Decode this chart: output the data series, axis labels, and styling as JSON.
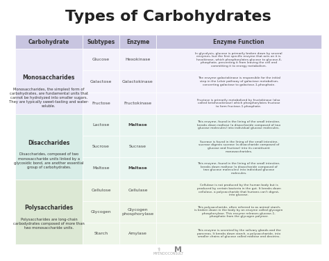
{
  "title": "Types of Carbohydrates",
  "title_fontsize": 16,
  "title_fontweight": "bold",
  "bg_color": "#ffffff",
  "header_bg": "#c8c5e0",
  "mono_bg": "#e8e6f0",
  "di_bg": "#daeee8",
  "poly_bg": "#e8f0e4",
  "subtype_bg_light": "#f0eefc",
  "subtype_bg_di": "#e4f4ef",
  "subtype_bg_poly": "#eef4e8",
  "headers": [
    "Carbohydrate",
    "Subtypes",
    "Enzyme",
    "Enzyme Function"
  ],
  "groups": [
    {
      "name": "Monosaccharides",
      "desc": "Monosaccharides, the simplest form of\ncarbohydrates, are fundamental units that\ncannot be hydrolyzed into smaller sugars.\nThey are typically sweet-tasting and water-\nsoluble.",
      "bg": "#ebe9f8",
      "row_bg": "#f4f2fc",
      "subtypes": [
        "Glucose",
        "Galactose",
        "Fructose"
      ],
      "enzymes": [
        "Hexokinase",
        "Galactokinase",
        "Fructokinase"
      ],
      "enzyme_bold": [
        false,
        false,
        false
      ],
      "functions": [
        "In glycolysis, glucose is primarily broken down by several\nenzymes, but the first specific enzyme that acts on it is\nhexokinase, which phosphorylates glucose to glucose-6-\nphosphate, preventing it from leaving the cell and\ncommitting it to energy metabolism.",
        "The enzyme galactokinase is responsible for the initial\nstep in the Leloir pathway of galactose metabolism,\nconverting galactose to galactose-1-phosphate.",
        "Fructose is primarily metabolized by fructokinase (also\ncalled ketohexokinase) which phosphorylates fructose\nto form fructose-1-phosphate."
      ]
    },
    {
      "name": "Disaccharides",
      "desc": "Disaccharides, composed of two\nmonosaccharide units linked by a\nglycosidic bond, are another essential\ngroup of carbohydrates.",
      "bg": "#d8ede7",
      "row_bg": "#e8f5f0",
      "subtypes": [
        "Lactose",
        "Sucrose",
        "Maltose"
      ],
      "enzymes": [
        "Maltase",
        "Sucrase",
        "Maltase"
      ],
      "enzyme_bold": [
        true,
        false,
        true
      ],
      "functions": [
        "This enzyme, found in the lining of the small intestine,\nbreaks down maltose (a disaccharide composed of two\nglucose molecules) into individual glucose molecules.",
        "Sucrase is found in the lining of the small intestine,\nsucrase digests sucrose (a disaccharide composed of\nglucose and fructose) into its constituent\nmonosaccharides.",
        "This enzyme, found in the lining of the small intestine,\nbreaks down maltose (a disaccharide composed of\ntwo glucose molecules) into individual glucose\nmolecules."
      ]
    },
    {
      "name": "Polysaccharides",
      "desc": "Polysaccharides are long-chain\ncarbodydrates composed of more than\ntwo monosaccharide units.",
      "bg": "#dce8d4",
      "row_bg": "#edf5e8",
      "subtypes": [
        "Cellulose",
        "Glycogen",
        "Starch"
      ],
      "enzymes": [
        "Cellulase",
        "Glycogen\nphosphorylase",
        "Amylase"
      ],
      "enzyme_bold": [
        false,
        false,
        false
      ],
      "functions": [
        "Cellulase is not produced by the human body but is\nproduced by certain bacteria in the gut. It breaks down\ncellulose, a polysaccharide that humans can't digest,\ninto glucose.",
        "This polysaccharide, often referred to as animal starch,\nis broken down in the body by an enzyme called glycogen\nphosphorylase. This enzyme releases glucose-1-\nphosphate from the glycogen polymer.",
        "This enzyme is secreted by the salivary glands and the\npancreas. It breaks down starch, a polysaccharide, into\nsmaller chains of glucose called maltose and dextrins."
      ]
    }
  ]
}
